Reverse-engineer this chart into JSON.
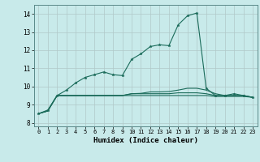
{
  "xlabel": "Humidex (Indice chaleur)",
  "bg_color": "#c8eaea",
  "plot_bg_color": "#c8eaea",
  "grid_color": "#b0c8c8",
  "line_color": "#1a6b5a",
  "xlim": [
    -0.5,
    23.5
  ],
  "ylim": [
    7.8,
    14.5
  ],
  "xticks": [
    0,
    1,
    2,
    3,
    4,
    5,
    6,
    7,
    8,
    9,
    10,
    11,
    12,
    13,
    14,
    15,
    16,
    17,
    18,
    19,
    20,
    21,
    22,
    23
  ],
  "yticks": [
    8,
    9,
    10,
    11,
    12,
    13,
    14
  ],
  "series": [
    [
      8.5,
      8.7,
      9.5,
      9.8,
      10.2,
      10.5,
      10.65,
      10.8,
      10.65,
      10.6,
      11.5,
      11.8,
      12.2,
      12.3,
      12.25,
      13.4,
      13.9,
      14.05,
      9.9,
      9.5,
      9.5,
      9.6,
      9.5,
      9.4
    ],
    [
      8.5,
      8.65,
      9.5,
      9.5,
      9.5,
      9.5,
      9.5,
      9.5,
      9.5,
      9.5,
      9.5,
      9.5,
      9.5,
      9.5,
      9.5,
      9.5,
      9.5,
      9.5,
      9.5,
      9.45,
      9.45,
      9.45,
      9.45,
      9.4
    ],
    [
      8.5,
      8.65,
      9.5,
      9.5,
      9.5,
      9.5,
      9.5,
      9.5,
      9.5,
      9.5,
      9.6,
      9.6,
      9.6,
      9.6,
      9.6,
      9.65,
      9.65,
      9.65,
      9.6,
      9.5,
      9.5,
      9.5,
      9.5,
      9.4
    ],
    [
      8.5,
      8.65,
      9.5,
      9.5,
      9.5,
      9.5,
      9.5,
      9.5,
      9.5,
      9.5,
      9.6,
      9.62,
      9.7,
      9.7,
      9.72,
      9.8,
      9.9,
      9.9,
      9.8,
      9.6,
      9.5,
      9.5,
      9.5,
      9.4
    ]
  ]
}
